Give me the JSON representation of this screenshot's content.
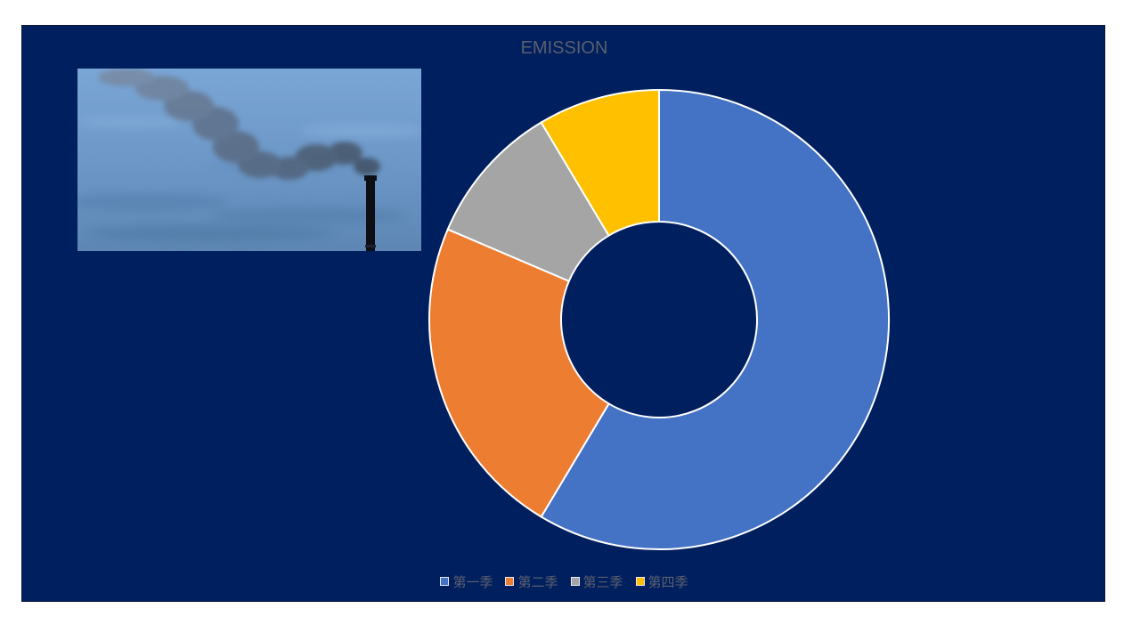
{
  "chart_data": {
    "type": "pie",
    "title": "EMISSION",
    "categories": [
      "第一季",
      "第二季",
      "第三季",
      "第四季"
    ],
    "values": [
      8.2,
      3.2,
      1.4,
      1.2
    ],
    "colors": [
      "#4472c4",
      "#ed7d31",
      "#a5a5a5",
      "#ffc000"
    ],
    "donut": true,
    "legend_position": "bottom"
  },
  "photo": {
    "icon": "smokestack-smoke-photo"
  }
}
